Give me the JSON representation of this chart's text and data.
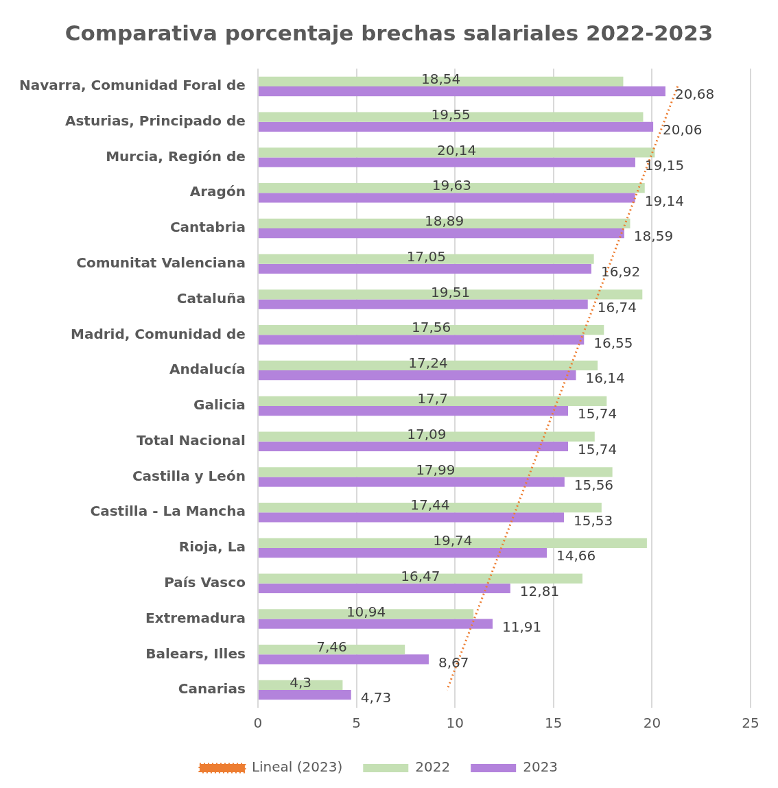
{
  "chart_data": {
    "type": "bar",
    "orientation": "horizontal",
    "title": "Comparativa porcentaje brechas salariales 2022-2023",
    "categories": [
      "Navarra, Comunidad Foral de",
      "Asturias, Principado de",
      "Murcia, Región de",
      "Aragón",
      "Cantabria",
      "Comunitat Valenciana",
      "Cataluña",
      "Madrid, Comunidad de",
      "Andalucía",
      "Galicia",
      "Total Nacional",
      "Castilla y León",
      "Castilla - La Mancha",
      "Rioja, La",
      "País Vasco",
      "Extremadura",
      "Balears, Illes",
      "Canarias"
    ],
    "series": [
      {
        "name": "2022",
        "color": "#c5e0b4",
        "values": [
          18.54,
          19.55,
          20.14,
          19.63,
          18.89,
          17.05,
          19.51,
          17.56,
          17.24,
          17.7,
          17.09,
          17.99,
          17.44,
          19.74,
          16.47,
          10.94,
          7.46,
          4.3
        ],
        "value_labels": [
          "18,54",
          "19,55",
          "20,14",
          "19,63",
          "18,89",
          "17,05",
          "19,51",
          "17,56",
          "17,24",
          "17,7",
          "17,09",
          "17,99",
          "17,44",
          "19,74",
          "16,47",
          "10,94",
          "7,46",
          "4,3"
        ]
      },
      {
        "name": "2023",
        "color": "#b383dc",
        "values": [
          20.68,
          20.06,
          19.15,
          19.14,
          18.59,
          16.92,
          16.74,
          16.55,
          16.14,
          15.74,
          15.74,
          15.56,
          15.53,
          14.66,
          12.81,
          11.91,
          8.67,
          4.73
        ],
        "value_labels": [
          "20,68",
          "20,06",
          "19,15",
          "19,14",
          "18,59",
          "16,92",
          "16,74",
          "16,55",
          "16,14",
          "15,74",
          "15,74",
          "15,56",
          "15,53",
          "14,66",
          "12,81",
          "11,91",
          "8,67",
          "4,73"
        ]
      },
      {
        "name": "Lineal (2023)",
        "type": "line",
        "color": "#ed7d31",
        "line_style": "dotted",
        "values": [
          21.3,
          null,
          null,
          null,
          null,
          null,
          null,
          null,
          null,
          null,
          null,
          null,
          null,
          null,
          null,
          null,
          null,
          9.6
        ]
      }
    ],
    "xlim": [
      0,
      25
    ],
    "xticks": [
      0,
      5,
      10,
      15,
      20,
      25
    ],
    "grid": "x",
    "legend": "bottom",
    "marker": "none"
  }
}
